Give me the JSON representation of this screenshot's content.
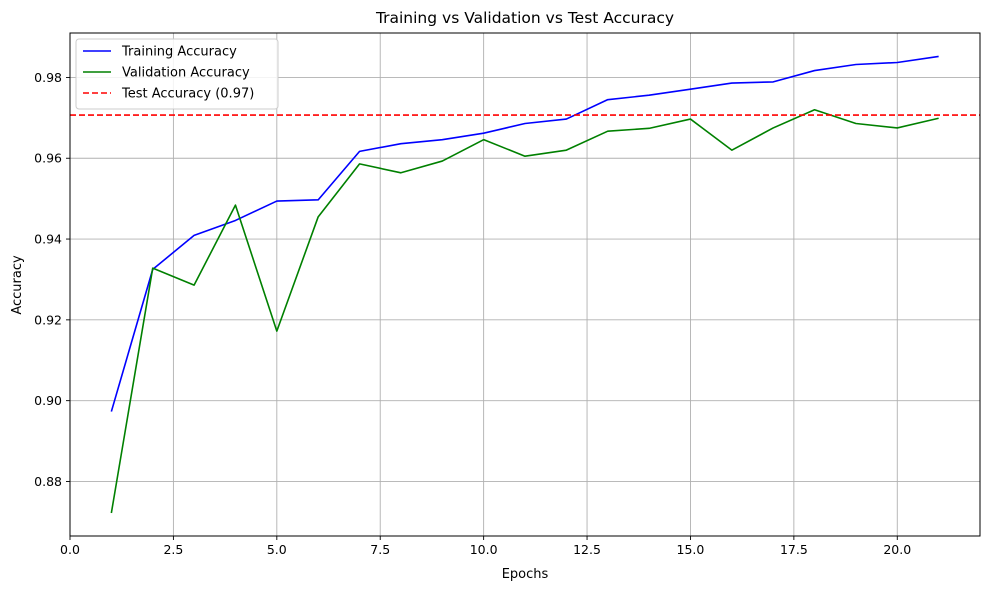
{
  "chart_data": {
    "type": "line",
    "title": "Training vs Validation vs Test Accuracy",
    "xlabel": "Epochs",
    "ylabel": "Accuracy",
    "xlim": [
      0,
      22
    ],
    "ylim": [
      0.8665,
      0.991
    ],
    "xticks": [
      0.0,
      2.5,
      5.0,
      7.5,
      10.0,
      12.5,
      15.0,
      17.5,
      20.0
    ],
    "xtick_labels": [
      "0.0",
      "2.5",
      "5.0",
      "7.5",
      "10.0",
      "12.5",
      "15.0",
      "17.5",
      "20.0"
    ],
    "yticks": [
      0.88,
      0.9,
      0.92,
      0.94,
      0.96,
      0.98
    ],
    "ytick_labels": [
      "0.88",
      "0.90",
      "0.92",
      "0.94",
      "0.96",
      "0.98"
    ],
    "grid": true,
    "legend_position": "top-left",
    "x": [
      1,
      2,
      3,
      4,
      5,
      6,
      7,
      8,
      9,
      10,
      11,
      12,
      13,
      14,
      15,
      16,
      17,
      18,
      19,
      20,
      21
    ],
    "series": [
      {
        "name": "Training Accuracy",
        "color": "#0000ff",
        "style": "solid",
        "values": [
          0.8973,
          0.9325,
          0.9409,
          0.9446,
          0.9494,
          0.9497,
          0.9617,
          0.9636,
          0.9646,
          0.9662,
          0.9686,
          0.9697,
          0.9745,
          0.9756,
          0.9771,
          0.9786,
          0.9789,
          0.9817,
          0.9832,
          0.9837,
          0.9852
        ]
      },
      {
        "name": "Validation Accuracy",
        "color": "#008000",
        "style": "solid",
        "values": [
          0.8722,
          0.9328,
          0.9286,
          0.9484,
          0.9172,
          0.9455,
          0.9586,
          0.9564,
          0.9593,
          0.9646,
          0.9605,
          0.962,
          0.9667,
          0.9674,
          0.9697,
          0.962,
          0.9675,
          0.972,
          0.9686,
          0.9675,
          0.9699
        ]
      }
    ],
    "reference_lines": [
      {
        "name": "Test Accuracy (0.97)",
        "color": "#ff0000",
        "style": "dashed",
        "value": 0.9707
      }
    ]
  }
}
